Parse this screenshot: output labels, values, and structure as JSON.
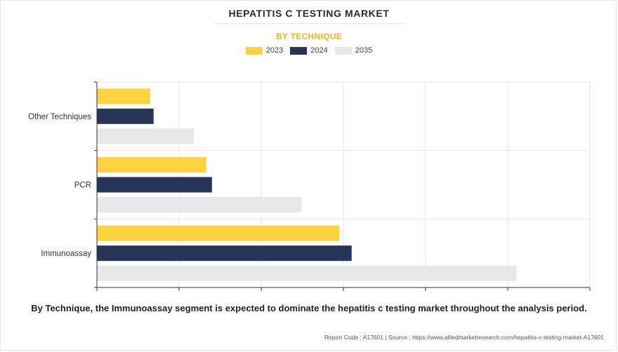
{
  "header": {
    "title": "HEPATITIS C TESTING MARKET",
    "subtitle": "BY TECHNIQUE"
  },
  "chart_data": {
    "type": "bar",
    "orientation": "horizontal",
    "categories": [
      "Other Techniques",
      "PCR",
      "Immunoassay"
    ],
    "series": [
      {
        "name": "2023",
        "color": "#ffd23f",
        "values": [
          0.65,
          1.33,
          2.95
        ]
      },
      {
        "name": "2024",
        "color": "#263558",
        "values": [
          0.69,
          1.4,
          3.1
        ]
      },
      {
        "name": "2035",
        "color": "#e8e8e8",
        "values": [
          1.18,
          2.49,
          5.11
        ]
      }
    ],
    "xlim": [
      0,
      6
    ],
    "x_ticks": [
      0,
      1,
      2,
      3,
      4,
      5,
      6
    ],
    "x_tick_labels_shown": false,
    "grid": true,
    "legend_position": "top-center"
  },
  "caption": "By Technique, the Immunoassay segment is expected to dominate the hepatitis c testing market throughout the analysis period.",
  "footer": {
    "text": "Report Code : A17601  |  Source : https://www.alliedmarketresearch.com/hepatitis-c-testing-market-A17601"
  }
}
